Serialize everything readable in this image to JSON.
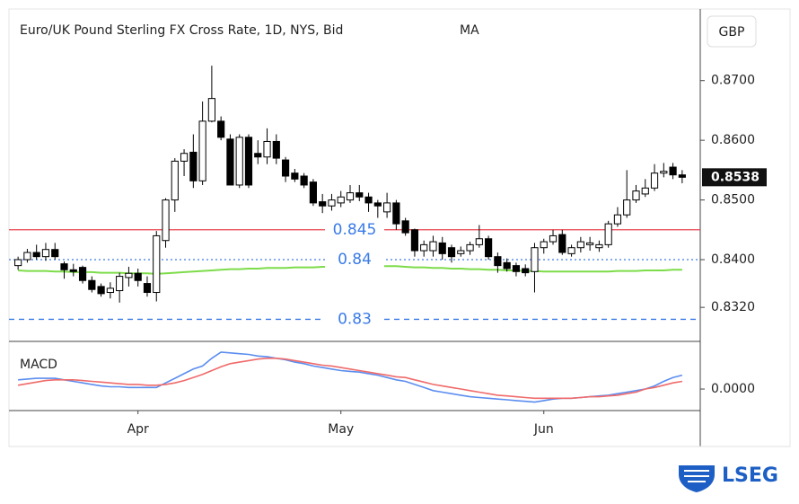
{
  "chart_data": {
    "type": "candlestick",
    "title": "Euro/UK Pound Sterling FX Cross Rate, 1D, NYS, Bid",
    "indicator_label": "MA",
    "currency": "GBP",
    "categories": [
      null,
      null,
      null,
      null,
      null,
      null,
      null,
      null,
      null,
      null,
      null,
      null,
      null,
      "Apr",
      null,
      null,
      null,
      null,
      null,
      null,
      null,
      null,
      null,
      null,
      null,
      null,
      null,
      null,
      null,
      null,
      null,
      null,
      null,
      null,
      null,
      "May",
      null,
      null,
      null,
      null,
      null,
      null,
      null,
      null,
      null,
      null,
      null,
      null,
      null,
      null,
      null,
      null,
      null,
      null,
      null,
      null,
      null,
      "Jun",
      null,
      null,
      null,
      null,
      null,
      null,
      null,
      null,
      null,
      null,
      null,
      null,
      null,
      null,
      null
    ],
    "open": [
      0.839,
      0.84,
      0.8412,
      0.8405,
      0.8417,
      0.8393,
      0.8383,
      0.8387,
      0.8365,
      0.8355,
      0.8345,
      0.8348,
      0.837,
      0.8377,
      0.836,
      0.8345,
      0.8432,
      0.85,
      0.8565,
      0.858,
      0.8532,
      0.8632,
      0.8632,
      0.8602,
      0.8525,
      0.8605,
      0.8578,
      0.8572,
      0.8598,
      0.8567,
      0.8545,
      0.854,
      0.853,
      0.8497,
      0.849,
      0.8495,
      0.85,
      0.8512,
      0.8505,
      0.8495,
      0.848,
      0.8495,
      0.8465,
      0.845,
      0.8415,
      0.8415,
      0.8428,
      0.842,
      0.841,
      0.8415,
      0.8425,
      0.8435,
      0.8405,
      0.8395,
      0.839,
      0.8385,
      0.838,
      0.842,
      0.843,
      0.8442,
      0.841,
      0.842,
      0.8425,
      0.842,
      0.8425,
      0.846,
      0.8475,
      0.85,
      0.851,
      0.852,
      0.8545,
      0.8555,
      0.8542
    ],
    "high": [
      0.8405,
      0.8418,
      0.8425,
      0.8428,
      0.8428,
      0.8397,
      0.8393,
      0.839,
      0.8372,
      0.836,
      0.8362,
      0.8378,
      0.8388,
      0.8385,
      0.8372,
      0.8448,
      0.8503,
      0.857,
      0.8585,
      0.861,
      0.8665,
      0.8725,
      0.864,
      0.861,
      0.861,
      0.861,
      0.86,
      0.862,
      0.861,
      0.8572,
      0.8552,
      0.8545,
      0.8535,
      0.851,
      0.851,
      0.8515,
      0.8525,
      0.8525,
      0.8512,
      0.85,
      0.8512,
      0.85,
      0.847,
      0.8452,
      0.8432,
      0.844,
      0.8438,
      0.8425,
      0.8422,
      0.843,
      0.8458,
      0.844,
      0.8412,
      0.8402,
      0.8395,
      0.8392,
      0.8428,
      0.8435,
      0.845,
      0.845,
      0.8425,
      0.8438,
      0.8438,
      0.8432,
      0.8465,
      0.8488,
      0.855,
      0.8525,
      0.8535,
      0.856,
      0.8562,
      0.8562,
      0.855
    ],
    "low": [
      0.8383,
      0.8395,
      0.84,
      0.8398,
      0.84,
      0.8368,
      0.8372,
      0.836,
      0.8345,
      0.8338,
      0.8335,
      0.8328,
      0.8355,
      0.8355,
      0.8338,
      0.833,
      0.842,
      0.848,
      0.854,
      0.852,
      0.8525,
      0.863,
      0.86,
      0.8525,
      0.852,
      0.852,
      0.856,
      0.856,
      0.856,
      0.853,
      0.853,
      0.852,
      0.849,
      0.8478,
      0.8482,
      0.8488,
      0.8495,
      0.8498,
      0.848,
      0.847,
      0.847,
      0.845,
      0.844,
      0.8405,
      0.8405,
      0.8405,
      0.84,
      0.8395,
      0.8405,
      0.8408,
      0.842,
      0.84,
      0.8378,
      0.838,
      0.8372,
      0.8372,
      0.8345,
      0.841,
      0.8425,
      0.8408,
      0.8405,
      0.8412,
      0.8415,
      0.8413,
      0.842,
      0.8455,
      0.847,
      0.8495,
      0.8505,
      0.8515,
      0.8538,
      0.8535,
      0.8528
    ],
    "close": [
      0.84,
      0.8412,
      0.8405,
      0.8417,
      0.8405,
      0.8383,
      0.838,
      0.8365,
      0.835,
      0.8343,
      0.8352,
      0.8372,
      0.8377,
      0.8365,
      0.8345,
      0.844,
      0.85,
      0.8565,
      0.8578,
      0.8532,
      0.8632,
      0.867,
      0.8605,
      0.8525,
      0.8605,
      0.8525,
      0.8572,
      0.8598,
      0.857,
      0.854,
      0.8535,
      0.8525,
      0.8495,
      0.849,
      0.85,
      0.8505,
      0.8512,
      0.8505,
      0.8495,
      0.849,
      0.8495,
      0.846,
      0.8445,
      0.8415,
      0.8425,
      0.843,
      0.841,
      0.8405,
      0.8415,
      0.8425,
      0.8435,
      0.8405,
      0.839,
      0.8385,
      0.838,
      0.8378,
      0.842,
      0.843,
      0.844,
      0.8412,
      0.842,
      0.843,
      0.8428,
      0.8425,
      0.846,
      0.8475,
      0.85,
      0.8515,
      0.852,
      0.8545,
      0.8548,
      0.8542,
      0.8538
    ],
    "up_color": "#ffffff",
    "down_color": "#000000",
    "ylim": [
      0.8263,
      0.882
    ],
    "yticks": [
      {
        "value": 0.87,
        "label": "0.8700"
      },
      {
        "value": 0.86,
        "label": "0.8600"
      },
      {
        "value": 0.85,
        "label": "0.8500"
      },
      {
        "value": 0.84,
        "label": "0.8400"
      },
      {
        "value": 0.832,
        "label": "0.8320"
      }
    ],
    "last_price": {
      "value": 0.8538,
      "label": "0.8538"
    },
    "ma": {
      "color": "#7ddc4a",
      "values": [
        0.8382,
        0.8381,
        0.8381,
        0.8381,
        0.838,
        0.838,
        0.8379,
        0.8379,
        0.8379,
        0.8378,
        0.8378,
        0.8378,
        0.8377,
        0.8377,
        0.8377,
        0.8376,
        0.8377,
        0.8378,
        0.8379,
        0.838,
        0.8381,
        0.8382,
        0.8383,
        0.8384,
        0.8384,
        0.8385,
        0.8385,
        0.8386,
        0.8386,
        0.8386,
        0.8387,
        0.8387,
        0.8387,
        0.8388,
        0.8388,
        0.8388,
        0.8389,
        0.8389,
        0.8389,
        0.8389,
        0.8389,
        0.8389,
        0.8388,
        0.8387,
        0.8387,
        0.8386,
        0.8386,
        0.8385,
        0.8385,
        0.8384,
        0.8384,
        0.8383,
        0.8383,
        0.8382,
        0.8382,
        0.8381,
        0.8381,
        0.838,
        0.838,
        0.838,
        0.838,
        0.838,
        0.838,
        0.838,
        0.838,
        0.8381,
        0.8381,
        0.8381,
        0.8382,
        0.8382,
        0.8382,
        0.8383,
        0.8383
      ]
    },
    "levels": [
      {
        "value": 0.845,
        "color": "#e8434c",
        "dash": "solid"
      },
      {
        "value": 0.84,
        "color": "#3a7be8",
        "dash": "dotted"
      },
      {
        "value": 0.83,
        "color": "#3a7be8",
        "dash": "dashed"
      }
    ],
    "level_label_color": "#3a7be8",
    "macd": {
      "label": "MACD",
      "ylim": [
        -0.0028,
        0.0062
      ],
      "yticks": [
        {
          "value": 0,
          "label": "0.0000"
        }
      ],
      "series": [
        {
          "color": "#5b8def",
          "values": [
            0.0012,
            0.0013,
            0.0014,
            0.0014,
            0.0014,
            0.0012,
            0.001,
            0.0008,
            0.0006,
            0.0004,
            0.0003,
            0.0003,
            0.0002,
            0.0002,
            0.0002,
            0.0002,
            0.0008,
            0.0014,
            0.002,
            0.0026,
            0.003,
            0.004,
            0.0048,
            0.0047,
            0.0046,
            0.0045,
            0.0043,
            0.0042,
            0.004,
            0.0038,
            0.0035,
            0.0033,
            0.003,
            0.0028,
            0.0026,
            0.0024,
            0.0023,
            0.0022,
            0.002,
            0.0018,
            0.0015,
            0.0012,
            0.001,
            0.0006,
            0.0002,
            -0.0002,
            -0.0004,
            -0.0006,
            -0.0008,
            -0.001,
            -0.0011,
            -0.0012,
            -0.0013,
            -0.0014,
            -0.0015,
            -0.0016,
            -0.0017,
            -0.0015,
            -0.0013,
            -0.0012,
            -0.0012,
            -0.0011,
            -0.001,
            -0.0009,
            -0.0008,
            -0.0006,
            -0.0004,
            -0.0002,
            0.0,
            0.0004,
            0.001,
            0.0015,
            0.0018
          ]
        },
        {
          "color": "#f06a6a",
          "values": [
            0.0005,
            0.0007,
            0.0009,
            0.0011,
            0.0012,
            0.0012,
            0.0012,
            0.0011,
            0.001,
            0.0009,
            0.0008,
            0.0007,
            0.0006,
            0.0006,
            0.0005,
            0.0005,
            0.0006,
            0.0008,
            0.0011,
            0.0015,
            0.0019,
            0.0024,
            0.0029,
            0.0033,
            0.0035,
            0.0037,
            0.0039,
            0.004,
            0.004,
            0.0039,
            0.0037,
            0.0035,
            0.0033,
            0.0031,
            0.003,
            0.0028,
            0.0026,
            0.0024,
            0.0022,
            0.002,
            0.0018,
            0.0016,
            0.0015,
            0.0012,
            0.0009,
            0.0006,
            0.0004,
            0.0002,
            0.0,
            -0.0002,
            -0.0004,
            -0.0006,
            -0.0008,
            -0.0009,
            -0.001,
            -0.0011,
            -0.0012,
            -0.0012,
            -0.0012,
            -0.0012,
            -0.0012,
            -0.0011,
            -0.001,
            -0.001,
            -0.0009,
            -0.0008,
            -0.0006,
            -0.0004,
            0.0,
            0.0002,
            0.0005,
            0.0008,
            0.001
          ]
        }
      ]
    }
  },
  "logo": "LSEG"
}
